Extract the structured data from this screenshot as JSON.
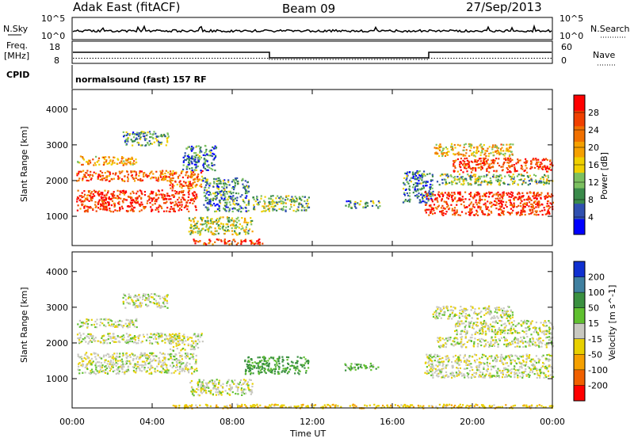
{
  "header": {
    "radar": "Adak East (fitACF)",
    "beam": "Beam 09",
    "date": "27/Sep/2013"
  },
  "panels": {
    "nsky": {
      "label": "N.Sky",
      "ticks": [
        "10^5",
        "10^0"
      ]
    },
    "nsearch": {
      "label": "N.Search",
      "ticks": [
        "10^5",
        "10^0"
      ]
    },
    "freq": {
      "label_line1": "Freq.",
      "label_line2": "[MHz]",
      "ticks": [
        "18",
        "8"
      ]
    },
    "nave": {
      "label": "Nave",
      "ticks": [
        "60",
        "0"
      ]
    },
    "cpid": {
      "label": "CPID",
      "value": "normalsound (fast) 157 RF"
    }
  },
  "chart_data": [
    {
      "type": "heatmap",
      "name": "Power",
      "ylabel": "Slant Range [km]",
      "xlabel": "",
      "x_ticks": [
        "00:00",
        "04:00",
        "08:00",
        "12:00",
        "16:00",
        "20:00",
        "00:00"
      ],
      "x_hours": [
        0,
        4,
        8,
        12,
        16,
        20,
        24
      ],
      "y_ticks": [
        1000,
        2000,
        3000,
        4000
      ],
      "ylim": [
        180,
        4550
      ],
      "xlim": [
        0,
        24
      ],
      "colorbar": {
        "label": "Power [dB]",
        "ticks": [
          "4",
          "8",
          "12",
          "16",
          "20",
          "24",
          "28"
        ],
        "colors": [
          "#0000ff",
          "#3050b0",
          "#3a8a4a",
          "#7cc060",
          "#f0d000",
          "#f5a000",
          "#f07000",
          "#f04000",
          "#ff0000"
        ]
      },
      "regions": [
        {
          "t0": 0.2,
          "t1": 6.2,
          "r0": 1150,
          "r1": 1750,
          "level": 28
        },
        {
          "t0": 0.2,
          "t1": 5.0,
          "r0": 2000,
          "r1": 2300,
          "level": 24
        },
        {
          "t0": 0.2,
          "t1": 3.2,
          "r0": 2450,
          "r1": 2700,
          "level": 20
        },
        {
          "t0": 2.5,
          "t1": 4.8,
          "r0": 3000,
          "r1": 3400,
          "level": 10
        },
        {
          "t0": 4.8,
          "t1": 6.5,
          "r0": 1800,
          "r1": 2300,
          "level": 24
        },
        {
          "t0": 5.5,
          "t1": 7.2,
          "r0": 2300,
          "r1": 3000,
          "level": 8
        },
        {
          "t0": 6.5,
          "t1": 8.8,
          "r0": 1150,
          "r1": 2100,
          "level": 9
        },
        {
          "t0": 9.0,
          "t1": 11.8,
          "r0": 1150,
          "r1": 1600,
          "level": 12
        },
        {
          "t0": 5.8,
          "t1": 9.0,
          "r0": 500,
          "r1": 1000,
          "level": 14
        },
        {
          "t0": 6.0,
          "t1": 9.5,
          "r0": 230,
          "r1": 380,
          "level": 27
        },
        {
          "t0": 13.6,
          "t1": 15.4,
          "r0": 1250,
          "r1": 1450,
          "level": 9
        },
        {
          "t0": 16.5,
          "t1": 18.0,
          "r0": 1400,
          "r1": 2300,
          "level": 8
        },
        {
          "t0": 17.6,
          "t1": 24.0,
          "r0": 1050,
          "r1": 1700,
          "level": 28
        },
        {
          "t0": 18.2,
          "t1": 24.0,
          "r0": 1900,
          "r1": 2200,
          "level": 12
        },
        {
          "t0": 19.0,
          "t1": 24.0,
          "r0": 2250,
          "r1": 2650,
          "level": 27
        },
        {
          "t0": 18.0,
          "t1": 22.0,
          "r0": 2700,
          "r1": 3050,
          "level": 18
        }
      ]
    },
    {
      "type": "heatmap",
      "name": "Velocity",
      "ylabel": "Slant Range [km]",
      "xlabel": "Time UT",
      "x_ticks": [
        "00:00",
        "04:00",
        "08:00",
        "12:00",
        "16:00",
        "20:00",
        "00:00"
      ],
      "x_hours": [
        0,
        4,
        8,
        12,
        16,
        20,
        24
      ],
      "y_ticks": [
        1000,
        2000,
        3000,
        4000
      ],
      "ylim": [
        180,
        4550
      ],
      "xlim": [
        0,
        24
      ],
      "colorbar": {
        "label": "Velocity [m s^-1]",
        "ticks": [
          "200",
          "100",
          "50",
          "15",
          "-15",
          "-50",
          "-100",
          "-200"
        ],
        "colors": [
          "#1030d0",
          "#4080a0",
          "#3a9040",
          "#60c030",
          "#c8c8c0",
          "#e8d000",
          "#f5a000",
          "#f06000",
          "#ff0000"
        ]
      },
      "regions": [
        {
          "t0": 0.2,
          "t1": 6.2,
          "r0": 1150,
          "r1": 1750,
          "level": 0
        },
        {
          "t0": 0.2,
          "t1": 5.0,
          "r0": 2000,
          "r1": 2300,
          "level": 0
        },
        {
          "t0": 0.2,
          "t1": 3.2,
          "r0": 2450,
          "r1": 2700,
          "level": 0
        },
        {
          "t0": 2.5,
          "t1": 4.8,
          "r0": 3000,
          "r1": 3400,
          "level": 0
        },
        {
          "t0": 4.8,
          "t1": 6.5,
          "r0": 1800,
          "r1": 2300,
          "level": 0
        },
        {
          "t0": 5.8,
          "t1": 9.0,
          "r0": 550,
          "r1": 1000,
          "level": 0
        },
        {
          "t0": 8.6,
          "t1": 11.8,
          "r0": 1150,
          "r1": 1650,
          "level": 60
        },
        {
          "t0": 13.6,
          "t1": 15.4,
          "r0": 1250,
          "r1": 1450,
          "level": 40
        },
        {
          "t0": 17.6,
          "t1": 24.0,
          "r0": 1050,
          "r1": 1700,
          "level": 0
        },
        {
          "t0": 18.2,
          "t1": 24.0,
          "r0": 1900,
          "r1": 2200,
          "level": 0
        },
        {
          "t0": 19.0,
          "t1": 24.0,
          "r0": 2250,
          "r1": 2650,
          "level": 0
        },
        {
          "t0": 18.0,
          "t1": 22.0,
          "r0": 2700,
          "r1": 3050,
          "level": 0
        },
        {
          "t0": 5.0,
          "t1": 24.0,
          "r0": 190,
          "r1": 300,
          "level": -40
        }
      ]
    }
  ]
}
